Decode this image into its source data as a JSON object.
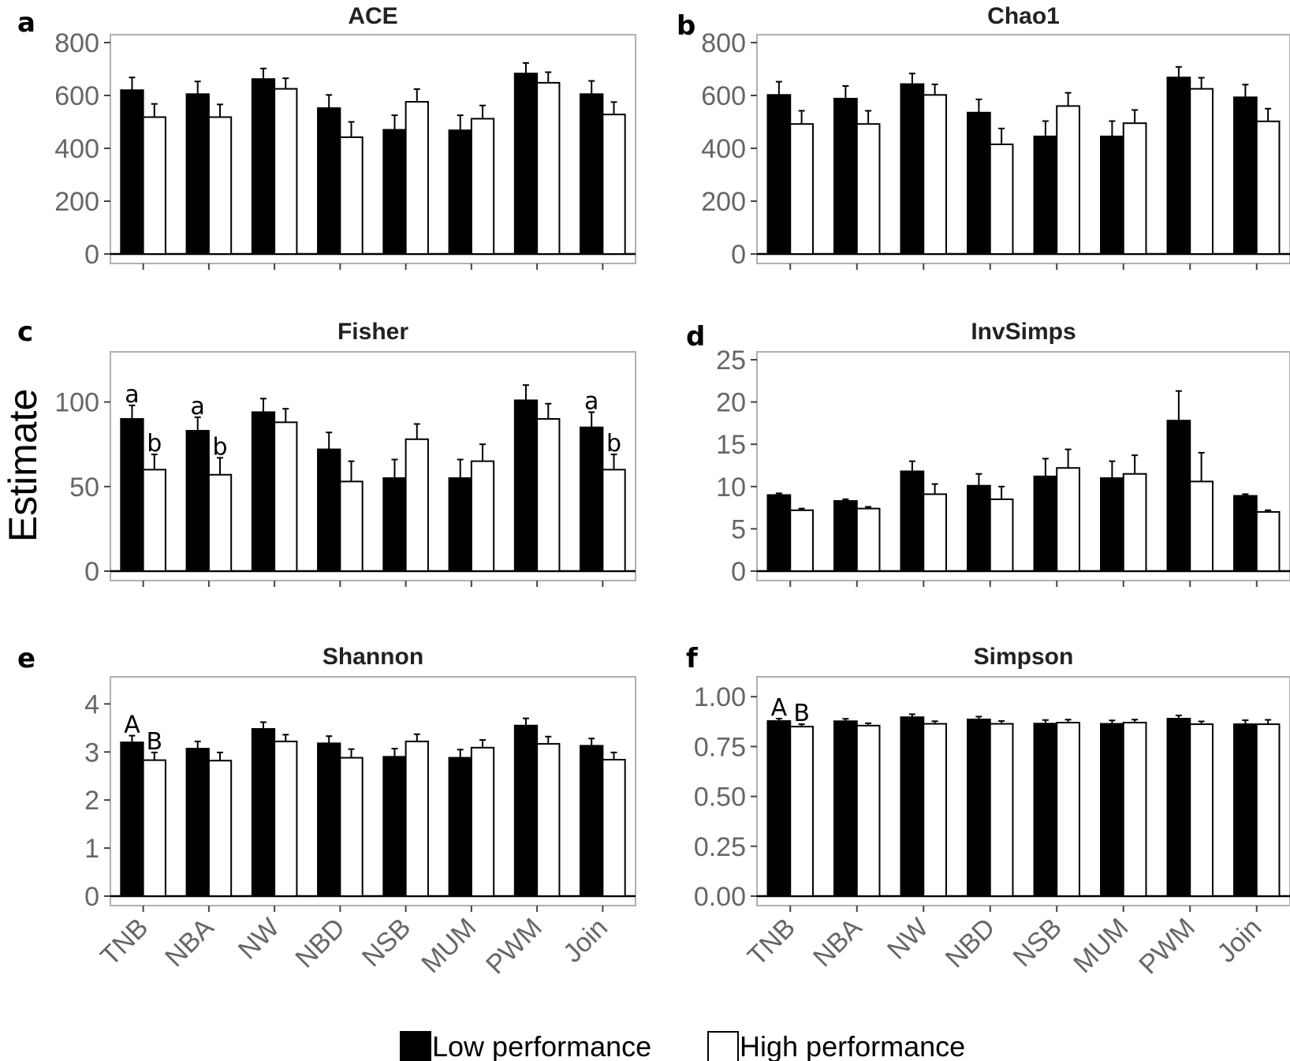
{
  "ylabel": "Estimate",
  "legend": [
    {
      "label": "Low performance",
      "color": "#000000"
    },
    {
      "label": "High performance",
      "color": "#ffffff"
    }
  ],
  "chart_data": [
    {
      "type": "bar",
      "letter": "a",
      "title": "ACE",
      "categories": [
        "TNB",
        "NBA",
        "NW",
        "NBD",
        "NSB",
        "MUM",
        "PWM",
        "Join"
      ],
      "ylim": [
        0,
        800
      ],
      "yticks": [
        "0",
        "200",
        "400",
        "600",
        "800"
      ],
      "ytick_values": [
        0,
        200,
        400,
        600,
        800
      ],
      "show_xlabels": false,
      "series": [
        {
          "name": "Low performance",
          "values": [
            620,
            605,
            662,
            552,
            470,
            468,
            683,
            605
          ],
          "errors": [
            48,
            48,
            40,
            50,
            55,
            57,
            40,
            50
          ]
        },
        {
          "name": "High performance",
          "values": [
            518,
            518,
            625,
            442,
            576,
            512,
            648,
            528
          ],
          "errors": [
            50,
            48,
            40,
            58,
            48,
            50,
            40,
            47
          ]
        }
      ],
      "annotations": []
    },
    {
      "type": "bar",
      "letter": "b",
      "title": "Chao1",
      "categories": [
        "TNB",
        "NBA",
        "NW",
        "NBD",
        "NSB",
        "MUM",
        "PWM",
        "Join"
      ],
      "ylim": [
        0,
        800
      ],
      "yticks": [
        "0",
        "200",
        "400",
        "600",
        "800"
      ],
      "ytick_values": [
        0,
        200,
        400,
        600,
        800
      ],
      "show_xlabels": false,
      "series": [
        {
          "name": "Low performance",
          "values": [
            602,
            588,
            643,
            535,
            445,
            445,
            668,
            593
          ],
          "errors": [
            50,
            48,
            40,
            50,
            58,
            58,
            40,
            48
          ]
        },
        {
          "name": "High performance",
          "values": [
            492,
            492,
            602,
            415,
            560,
            495,
            625,
            502
          ],
          "errors": [
            50,
            50,
            40,
            60,
            50,
            50,
            42,
            48
          ]
        }
      ],
      "annotations": []
    },
    {
      "type": "bar",
      "letter": "c",
      "title": "Fisher",
      "categories": [
        "TNB",
        "NBA",
        "NW",
        "NBD",
        "NSB",
        "MUM",
        "PWM",
        "Join"
      ],
      "ylim": [
        0,
        125
      ],
      "yticks": [
        "0",
        "50",
        "100"
      ],
      "ytick_values": [
        0,
        50,
        100
      ],
      "show_xlabels": false,
      "series": [
        {
          "name": "Low performance",
          "values": [
            90,
            83,
            94,
            72,
            55,
            55,
            101,
            85
          ],
          "errors": [
            8,
            8,
            8,
            10,
            11,
            11,
            9,
            9
          ]
        },
        {
          "name": "High performance",
          "values": [
            60,
            57,
            88,
            53,
            78,
            65,
            90,
            60
          ],
          "errors": [
            9,
            10,
            8,
            12,
            9,
            10,
            9,
            9
          ]
        }
      ],
      "annotations": [
        {
          "text": "a",
          "category": 0,
          "series": 0
        },
        {
          "text": "b",
          "category": 0,
          "series": 1
        },
        {
          "text": "a",
          "category": 1,
          "series": 0
        },
        {
          "text": "b",
          "category": 1,
          "series": 1
        },
        {
          "text": "a",
          "category": 7,
          "series": 0
        },
        {
          "text": "b",
          "category": 7,
          "series": 1
        }
      ]
    },
    {
      "type": "bar",
      "letter": "d",
      "title": "InvSimps",
      "categories": [
        "TNB",
        "NBA",
        "NW",
        "NBD",
        "NSB",
        "MUM",
        "PWM",
        "Join"
      ],
      "ylim": [
        0,
        25
      ],
      "yticks": [
        "0",
        "5",
        "10",
        "15",
        "20",
        "25"
      ],
      "ytick_values": [
        0,
        5,
        10,
        15,
        20,
        25
      ],
      "show_xlabels": false,
      "series": [
        {
          "name": "Low performance",
          "values": [
            9.0,
            8.3,
            11.8,
            10.1,
            11.2,
            11.0,
            17.8,
            8.9
          ],
          "errors": [
            0.2,
            0.2,
            1.2,
            1.4,
            2.1,
            2.0,
            3.5,
            0.2
          ]
        },
        {
          "name": "High performance",
          "values": [
            7.2,
            7.4,
            9.1,
            8.5,
            12.2,
            11.5,
            10.6,
            7.0
          ],
          "errors": [
            0.2,
            0.2,
            1.2,
            1.5,
            2.2,
            2.2,
            3.4,
            0.2
          ]
        }
      ],
      "annotations": []
    },
    {
      "type": "bar",
      "letter": "e",
      "title": "Shannon",
      "categories": [
        "TNB",
        "NBA",
        "NW",
        "NBD",
        "NSB",
        "MUM",
        "PWM",
        "Join"
      ],
      "ylim": [
        0,
        4.4
      ],
      "yticks": [
        "0",
        "1",
        "2",
        "3",
        "4"
      ],
      "ytick_values": [
        0,
        1,
        2,
        3,
        4
      ],
      "show_xlabels": true,
      "series": [
        {
          "name": "Low performance",
          "values": [
            3.2,
            3.07,
            3.48,
            3.18,
            2.9,
            2.88,
            3.55,
            3.13
          ],
          "errors": [
            0.14,
            0.15,
            0.14,
            0.15,
            0.17,
            0.17,
            0.15,
            0.15
          ]
        },
        {
          "name": "High performance",
          "values": [
            2.83,
            2.82,
            3.22,
            2.88,
            3.22,
            3.09,
            3.17,
            2.84
          ],
          "errors": [
            0.16,
            0.17,
            0.14,
            0.18,
            0.15,
            0.16,
            0.15,
            0.15
          ]
        }
      ],
      "annotations": [
        {
          "text": "A",
          "category": 0,
          "series": 0
        },
        {
          "text": "B",
          "category": 0,
          "series": 1
        }
      ]
    },
    {
      "type": "bar",
      "letter": "f",
      "title": "Simpson",
      "categories": [
        "TNB",
        "NBA",
        "NW",
        "NBD",
        "NSB",
        "MUM",
        "PWM",
        "Join"
      ],
      "ylim": [
        0,
        1.06
      ],
      "yticks": [
        "0.00",
        "0.25",
        "0.50",
        "0.75",
        "1.00"
      ],
      "ytick_values": [
        0,
        0.25,
        0.5,
        0.75,
        1.0
      ],
      "show_xlabels": true,
      "series": [
        {
          "name": "Low performance",
          "values": [
            0.878,
            0.877,
            0.897,
            0.886,
            0.865,
            0.864,
            0.89,
            0.862
          ],
          "errors": [
            0.012,
            0.012,
            0.015,
            0.014,
            0.018,
            0.017,
            0.016,
            0.02
          ]
        },
        {
          "name": "High performance",
          "values": [
            0.85,
            0.855,
            0.864,
            0.864,
            0.87,
            0.87,
            0.862,
            0.862
          ],
          "errors": [
            0.012,
            0.012,
            0.013,
            0.014,
            0.015,
            0.015,
            0.014,
            0.022
          ]
        }
      ],
      "annotations": [
        {
          "text": "A",
          "category": 0,
          "series": 0
        },
        {
          "text": "B",
          "category": 0,
          "series": 1
        }
      ]
    }
  ]
}
